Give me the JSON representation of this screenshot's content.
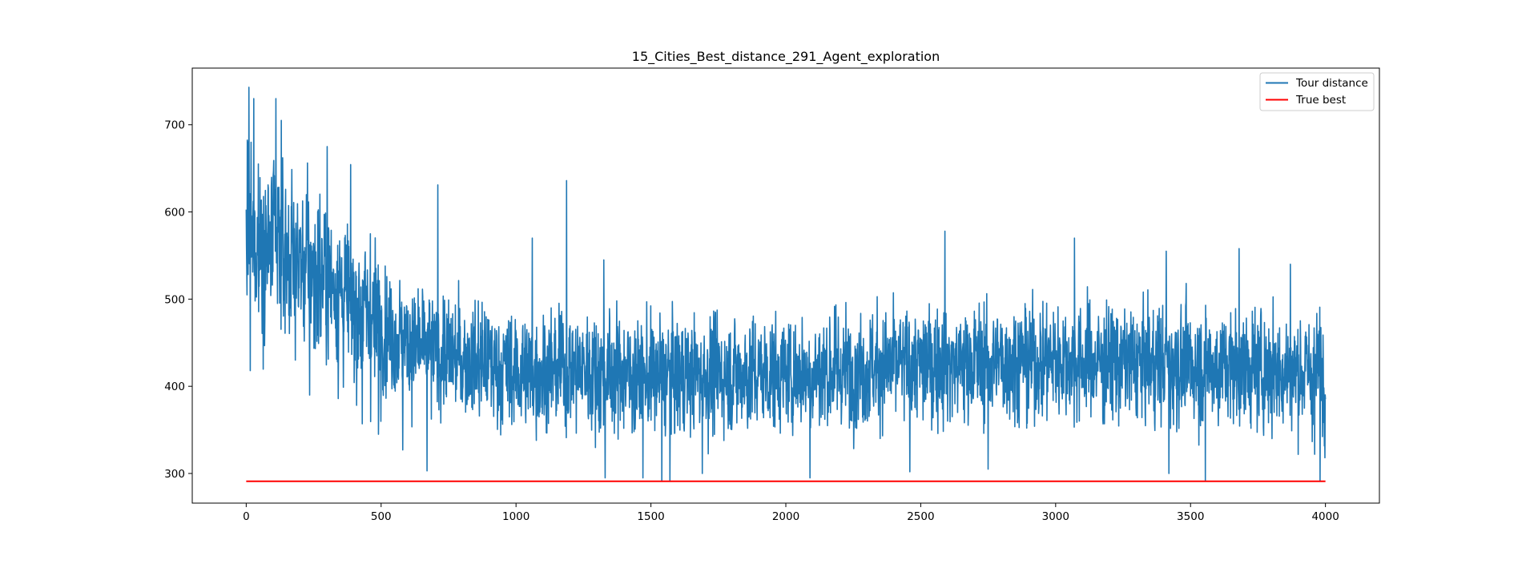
{
  "chart_data": {
    "type": "line",
    "title": "15_Cities_Best_distance_291_Agent_exploration",
    "xlabel": "",
    "ylabel": "",
    "xlim": [
      -200,
      4200
    ],
    "ylim": [
      266,
      765
    ],
    "xticks": [
      0,
      500,
      1000,
      1500,
      2000,
      2500,
      3000,
      3500,
      4000
    ],
    "yticks": [
      300,
      400,
      500,
      600,
      700
    ],
    "grid": false,
    "legend_position": "upper right",
    "series": [
      {
        "name": "Tour distance",
        "color": "#1f77b4",
        "n_points": 4000,
        "x_range": [
          0,
          4000
        ],
        "y_min": 291,
        "y_max": 743,
        "trend_centers": [
          [
            0,
            565
          ],
          [
            100,
            560
          ],
          [
            200,
            540
          ],
          [
            300,
            525
          ],
          [
            400,
            490
          ],
          [
            500,
            470
          ],
          [
            600,
            448
          ],
          [
            700,
            438
          ],
          [
            800,
            432
          ],
          [
            900,
            425
          ],
          [
            1000,
            415
          ],
          [
            1200,
            420
          ],
          [
            1500,
            412
          ],
          [
            2000,
            415
          ],
          [
            2500,
            425
          ],
          [
            3000,
            430
          ],
          [
            3500,
            425
          ],
          [
            4000,
            415
          ]
        ],
        "notable_peaks": [
          [
            5,
            680
          ],
          [
            10,
            743
          ],
          [
            18,
            680
          ],
          [
            28,
            730
          ],
          [
            45,
            655
          ],
          [
            110,
            730
          ],
          [
            130,
            705
          ],
          [
            300,
            675
          ],
          [
            460,
            575
          ],
          [
            710,
            631
          ],
          [
            1187,
            636
          ],
          [
            1060,
            570
          ],
          [
            1325,
            545
          ],
          [
            2590,
            578
          ],
          [
            3070,
            570
          ],
          [
            3410,
            555
          ],
          [
            3680,
            558
          ],
          [
            3870,
            540
          ]
        ],
        "notable_lows": [
          [
            15,
            418
          ],
          [
            235,
            390
          ],
          [
            430,
            357
          ],
          [
            490,
            345
          ],
          [
            580,
            327
          ],
          [
            670,
            303
          ],
          [
            1330,
            295
          ],
          [
            1470,
            295
          ],
          [
            1540,
            291
          ],
          [
            1570,
            291
          ],
          [
            1690,
            300
          ],
          [
            2090,
            295
          ],
          [
            2460,
            302
          ],
          [
            2750,
            305
          ],
          [
            3420,
            300
          ],
          [
            3555,
            292
          ],
          [
            3960,
            322
          ],
          [
            3980,
            291
          ]
        ]
      },
      {
        "name": "True best",
        "color": "#ff0000",
        "x": [
          0,
          4000
        ],
        "y": [
          291,
          291
        ]
      }
    ]
  }
}
